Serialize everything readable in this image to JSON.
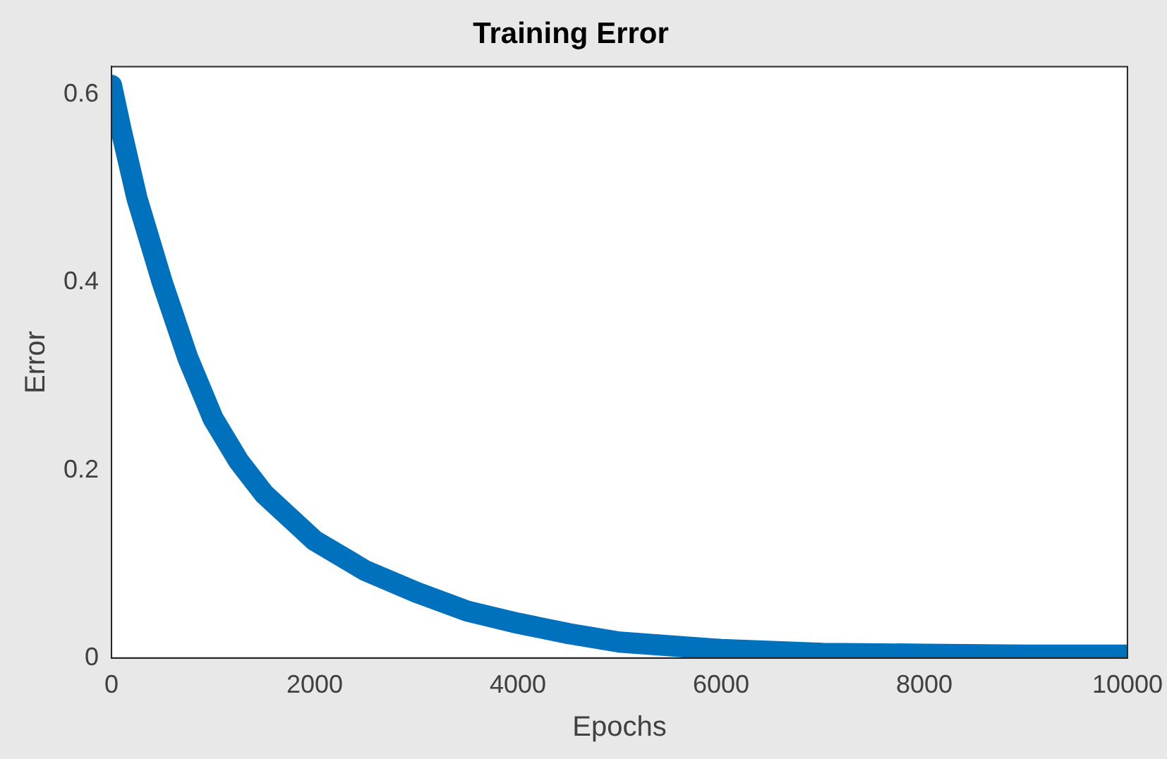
{
  "chart_data": {
    "type": "line",
    "title": "Training Error",
    "xlabel": "Epochs",
    "ylabel": "Error",
    "x": [
      0,
      100,
      250,
      500,
      750,
      1000,
      1250,
      1500,
      2000,
      2500,
      3000,
      3500,
      4000,
      4500,
      5000,
      6000,
      7000,
      8000,
      9000,
      10000
    ],
    "series": [
      {
        "color": "#0072bd",
        "values": [
          0.61,
          0.56,
          0.49,
          0.4,
          0.32,
          0.255,
          0.21,
          0.175,
          0.125,
          0.093,
          0.07,
          0.05,
          0.037,
          0.026,
          0.017,
          0.009,
          0.005,
          0.004,
          0.003,
          0.003
        ]
      }
    ],
    "xlim": [
      0,
      10000
    ],
    "xticks": [
      0,
      2000,
      4000,
      6000,
      8000,
      10000
    ],
    "ylim": [
      0,
      0.63
    ],
    "yticks": [
      0,
      0.2,
      0.4,
      0.6
    ],
    "grid": false,
    "legend": false
  }
}
